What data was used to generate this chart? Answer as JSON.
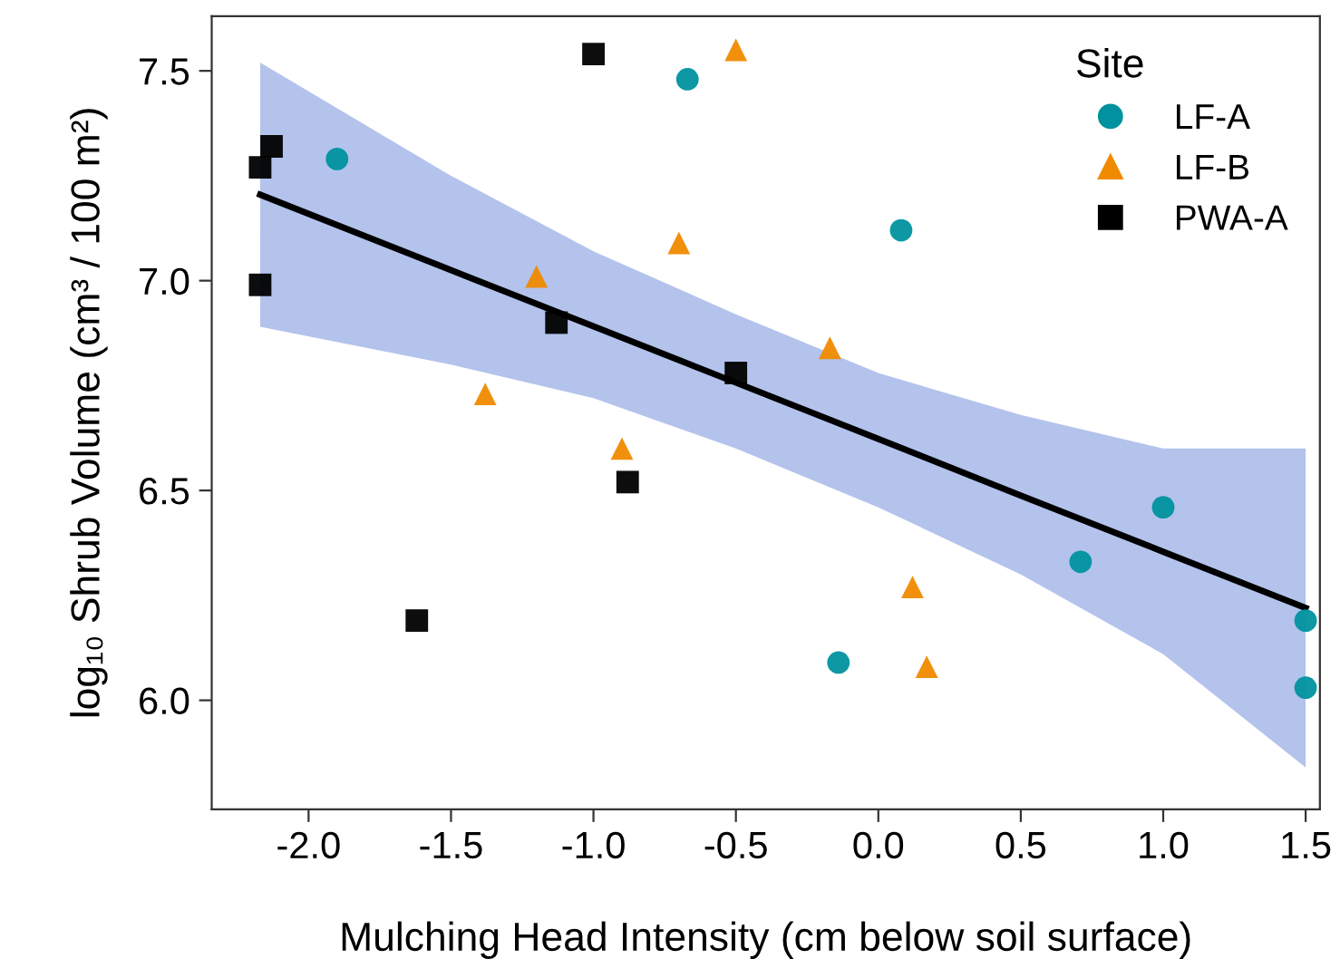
{
  "chart_data": {
    "type": "scatter",
    "xlabel": "Mulching Head Intensity (cm below soil surface)",
    "ylabel": "log₁₀ Shrub Volume (cm³ / 100 m²)",
    "legend_title": "Site",
    "legend": "top right",
    "grid": false,
    "xlim": [
      -2.34,
      1.55
    ],
    "ylim": [
      5.74,
      7.63
    ],
    "xticks": [
      {
        "value": -2.0,
        "label": "-2.0"
      },
      {
        "value": -1.5,
        "label": "-1.5"
      },
      {
        "value": -1.0,
        "label": "-1.0"
      },
      {
        "value": -0.5,
        "label": "-0.5"
      },
      {
        "value": 0.0,
        "label": "0.0"
      },
      {
        "value": 0.5,
        "label": "0.5"
      },
      {
        "value": 1.0,
        "label": "1.0"
      },
      {
        "value": 1.5,
        "label": "1.5"
      }
    ],
    "yticks": [
      {
        "value": 6.0,
        "label": "6.0"
      },
      {
        "value": 6.5,
        "label": "6.5"
      },
      {
        "value": 7.0,
        "label": "7.0"
      },
      {
        "value": 7.5,
        "label": "7.5"
      }
    ],
    "series": [
      {
        "type": "line",
        "color": "#000000",
        "line_style": "solid",
        "marker": "none",
        "x": [
          -2.17,
          -1.5,
          -1.0,
          -0.5,
          0.0,
          0.5,
          1.0,
          1.5
        ],
        "values": [
          7.205,
          7.025,
          6.891,
          6.757,
          6.623,
          6.488,
          6.354,
          6.22
        ],
        "lower": [
          6.89,
          6.8,
          6.72,
          6.6,
          6.46,
          6.3,
          6.11,
          5.84
        ],
        "upper": [
          7.52,
          7.25,
          7.07,
          6.92,
          6.78,
          6.68,
          6.6,
          6.6
        ]
      },
      {
        "name": "LF-A",
        "color": "#00929f",
        "marker": "circle",
        "x": [
          -1.9,
          -0.67,
          0.08,
          1.0,
          0.71,
          1.5,
          1.5,
          -0.14
        ],
        "values": [
          7.29,
          7.48,
          7.12,
          6.46,
          6.33,
          6.19,
          6.03,
          6.09
        ]
      },
      {
        "name": "LF-B",
        "color": "#f08a00",
        "marker": "triangle",
        "x": [
          -0.5,
          -1.2,
          -0.7,
          -1.38,
          -0.9,
          -0.17,
          0.12,
          0.17
        ],
        "values": [
          7.55,
          7.01,
          7.09,
          6.73,
          6.6,
          6.84,
          6.27,
          6.08
        ]
      },
      {
        "name": "PWA-A",
        "color": "#000000",
        "marker": "square",
        "x": [
          -1.0,
          -2.13,
          -2.17,
          -2.17,
          -1.13,
          -0.5,
          -0.88,
          -1.62
        ],
        "values": [
          7.54,
          7.32,
          7.27,
          6.99,
          6.9,
          6.78,
          6.52,
          6.19
        ]
      }
    ]
  }
}
